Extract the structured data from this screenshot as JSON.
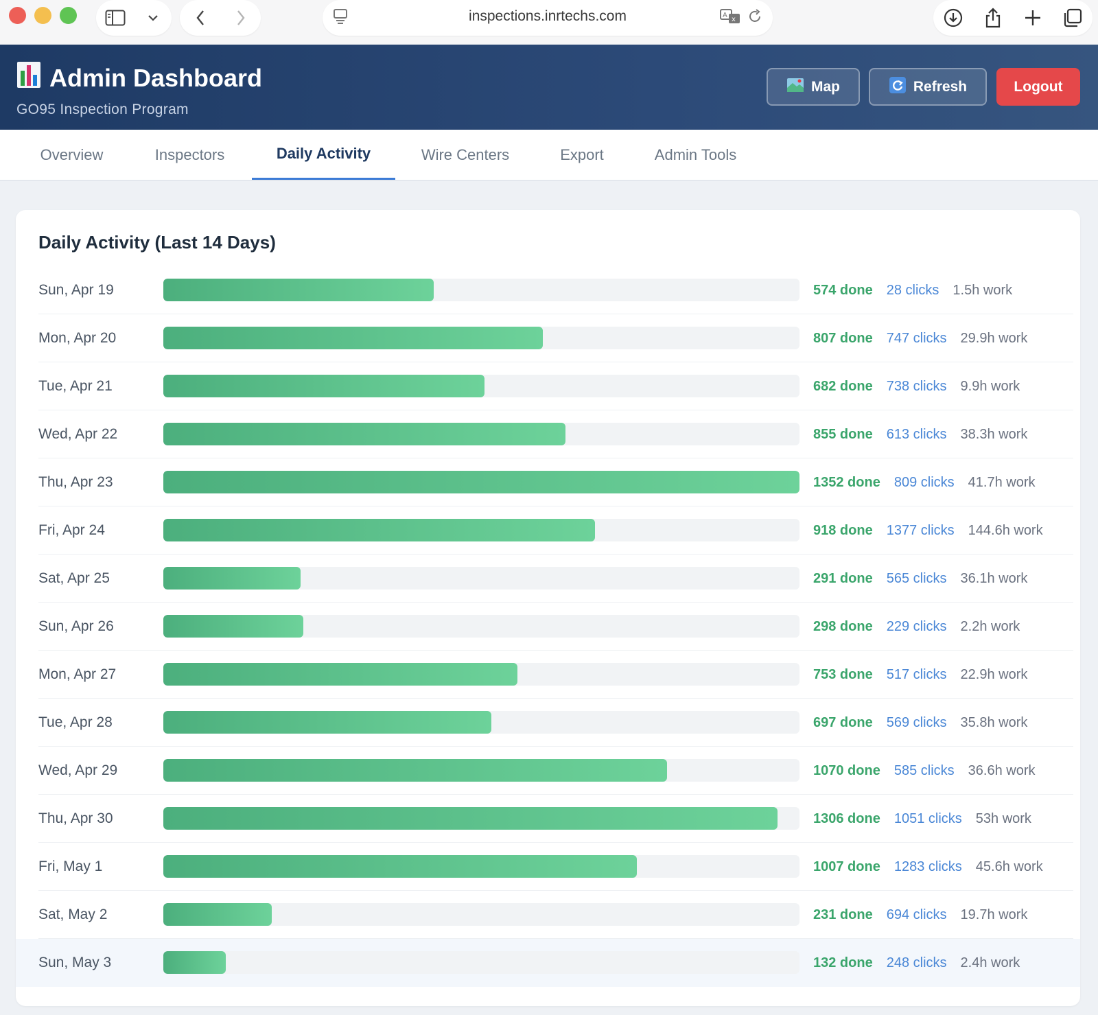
{
  "browser": {
    "url": "inspections.inrtechs.com"
  },
  "header": {
    "icon": "bar-chart-emoji",
    "title": "Admin Dashboard",
    "subtitle": "GO95 Inspection Program",
    "map_label": "Map",
    "refresh_label": "Refresh",
    "logout_label": "Logout"
  },
  "tabs": [
    {
      "label": "Overview"
    },
    {
      "label": "Inspectors"
    },
    {
      "label": "Daily Activity",
      "active": true
    },
    {
      "label": "Wire Centers"
    },
    {
      "label": "Export"
    },
    {
      "label": "Admin Tools"
    }
  ],
  "activity": {
    "title": "Daily Activity (Last 14 Days)",
    "max_done": 1352,
    "rows": [
      {
        "date": "Sun, Apr 19",
        "done": 574,
        "done_label": "574 done",
        "clicks_label": "28 clicks",
        "work_label": "1.5h work"
      },
      {
        "date": "Mon, Apr 20",
        "done": 807,
        "done_label": "807 done",
        "clicks_label": "747 clicks",
        "work_label": "29.9h work"
      },
      {
        "date": "Tue, Apr 21",
        "done": 682,
        "done_label": "682 done",
        "clicks_label": "738 clicks",
        "work_label": "9.9h work"
      },
      {
        "date": "Wed, Apr 22",
        "done": 855,
        "done_label": "855 done",
        "clicks_label": "613 clicks",
        "work_label": "38.3h work"
      },
      {
        "date": "Thu, Apr 23",
        "done": 1352,
        "done_label": "1352 done",
        "clicks_label": "809 clicks",
        "work_label": "41.7h work"
      },
      {
        "date": "Fri, Apr 24",
        "done": 918,
        "done_label": "918 done",
        "clicks_label": "1377 clicks",
        "work_label": "144.6h work"
      },
      {
        "date": "Sat, Apr 25",
        "done": 291,
        "done_label": "291 done",
        "clicks_label": "565 clicks",
        "work_label": "36.1h work"
      },
      {
        "date": "Sun, Apr 26",
        "done": 298,
        "done_label": "298 done",
        "clicks_label": "229 clicks",
        "work_label": "2.2h work"
      },
      {
        "date": "Mon, Apr 27",
        "done": 753,
        "done_label": "753 done",
        "clicks_label": "517 clicks",
        "work_label": "22.9h work"
      },
      {
        "date": "Tue, Apr 28",
        "done": 697,
        "done_label": "697 done",
        "clicks_label": "569 clicks",
        "work_label": "35.8h work"
      },
      {
        "date": "Wed, Apr 29",
        "done": 1070,
        "done_label": "1070 done",
        "clicks_label": "585 clicks",
        "work_label": "36.6h work"
      },
      {
        "date": "Thu, Apr 30",
        "done": 1306,
        "done_label": "1306 done",
        "clicks_label": "1051 clicks",
        "work_label": "53h work"
      },
      {
        "date": "Fri, May 1",
        "done": 1007,
        "done_label": "1007 done",
        "clicks_label": "1283 clicks",
        "work_label": "45.6h work"
      },
      {
        "date": "Sat, May 2",
        "done": 231,
        "done_label": "231 done",
        "clicks_label": "694 clicks",
        "work_label": "19.7h work"
      },
      {
        "date": "Sun, May 3",
        "done": 132,
        "done_label": "132 done",
        "clicks_label": "248 clicks",
        "work_label": "2.4h work",
        "highlight": true
      }
    ]
  },
  "colors": {
    "header_bg": "#1e3a64",
    "bar_fill": "#5cc08b",
    "done": "#3aa56b",
    "clicks": "#4a87d6",
    "logout": "#e5484a",
    "tab_active": "#3b7bd6"
  }
}
